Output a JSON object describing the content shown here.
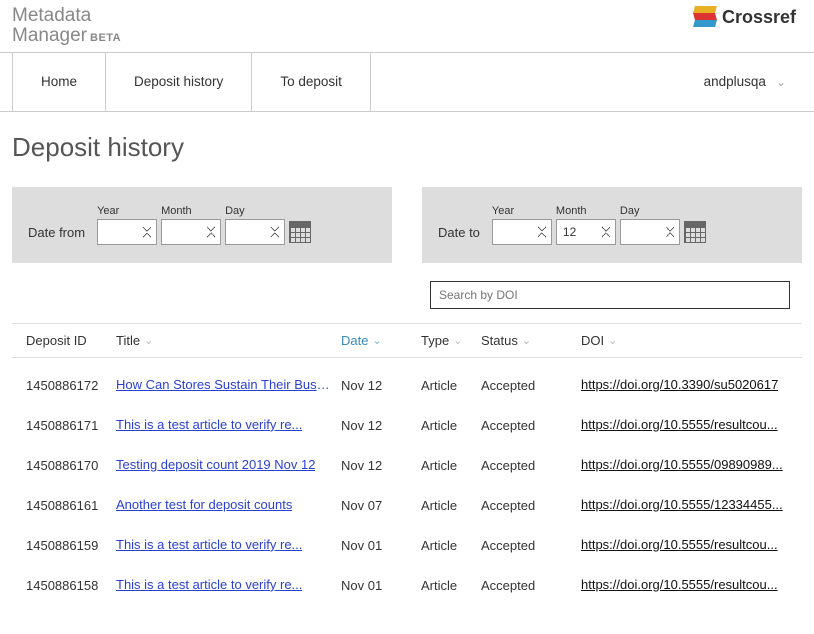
{
  "brand": {
    "line1": "Metadata",
    "line2": "Manager",
    "beta": "BETA"
  },
  "crossref_label": "Crossref",
  "nav": {
    "home": "Home",
    "deposit_history": "Deposit history",
    "to_deposit": "To deposit",
    "user": "andplusqa"
  },
  "page_title": "Deposit history",
  "filters": {
    "from_label": "Date from",
    "to_label": "Date to",
    "year_label": "Year",
    "month_label": "Month",
    "day_label": "Day",
    "from": {
      "year": "",
      "month": "",
      "day": ""
    },
    "to": {
      "year": "",
      "month": "12",
      "day": ""
    }
  },
  "search_placeholder": "Search by DOI",
  "columns": {
    "deposit_id": "Deposit ID",
    "title": "Title",
    "date": "Date",
    "type": "Type",
    "status": "Status",
    "doi": "DOI"
  },
  "rows": [
    {
      "id": "1450886172",
      "title": "How Can Stores Sustain Their Busine...",
      "date": "Nov 12",
      "type": "Article",
      "status": "Accepted",
      "doi": "https://doi.org/10.3390/su5020617"
    },
    {
      "id": "1450886171",
      "title": "This is a test article to verify re...",
      "date": "Nov 12",
      "type": "Article",
      "status": "Accepted",
      "doi": "https://doi.org/10.5555/resultcou..."
    },
    {
      "id": "1450886170",
      "title": "Testing deposit count 2019 Nov 12",
      "date": "Nov 12",
      "type": "Article",
      "status": "Accepted",
      "doi": "https://doi.org/10.5555/09890989..."
    },
    {
      "id": "1450886161",
      "title": "Another test for deposit counts",
      "date": "Nov 07",
      "type": "Article",
      "status": "Accepted",
      "doi": "https://doi.org/10.5555/12334455..."
    },
    {
      "id": "1450886159",
      "title": "This is a test article to verify re...",
      "date": "Nov 01",
      "type": "Article",
      "status": "Accepted",
      "doi": "https://doi.org/10.5555/resultcou..."
    },
    {
      "id": "1450886158",
      "title": "This is a test article to verify re...",
      "date": "Nov 01",
      "type": "Article",
      "status": "Accepted",
      "doi": "https://doi.org/10.5555/resultcou..."
    }
  ]
}
